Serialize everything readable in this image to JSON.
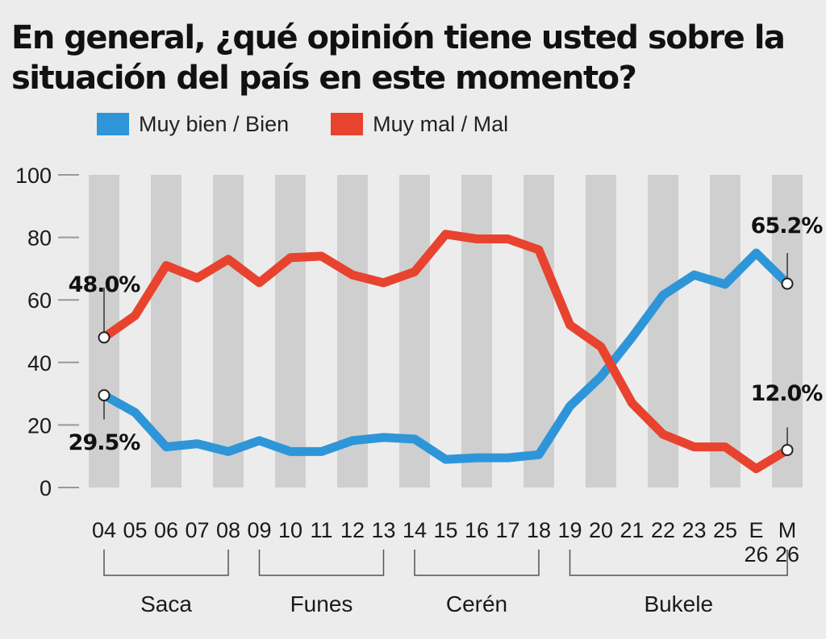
{
  "chart_data": {
    "type": "line",
    "title": "En general, ¿qué opinión tiene usted sobre la situación del país en este momento?",
    "ylim": [
      0,
      100
    ],
    "yticks": [
      "0",
      "20",
      "40",
      "60",
      "80",
      "100"
    ],
    "categories": [
      "04",
      "05",
      "06",
      "07",
      "08",
      "09",
      "10",
      "11",
      "12",
      "13",
      "14",
      "15",
      "16",
      "17",
      "18",
      "19",
      "20",
      "21",
      "22",
      "23",
      "25",
      "E 26",
      "M 26"
    ],
    "category_lines": [
      [
        "04"
      ],
      [
        "05"
      ],
      [
        "06"
      ],
      [
        "07"
      ],
      [
        "08"
      ],
      [
        "09"
      ],
      [
        "10"
      ],
      [
        "11"
      ],
      [
        "12"
      ],
      [
        "13"
      ],
      [
        "14"
      ],
      [
        "15"
      ],
      [
        "16"
      ],
      [
        "17"
      ],
      [
        "18"
      ],
      [
        "19"
      ],
      [
        "20"
      ],
      [
        "21"
      ],
      [
        "22"
      ],
      [
        "23"
      ],
      [
        "25"
      ],
      [
        "E",
        "26"
      ],
      [
        "M",
        "26"
      ]
    ],
    "series": [
      {
        "name": "Muy bien / Bien",
        "color": "#2e96d8",
        "values": [
          29.5,
          24,
          13,
          14,
          11.5,
          15,
          11.5,
          11.5,
          15,
          16,
          15.5,
          9,
          9.5,
          9.5,
          10.5,
          26,
          35.5,
          48,
          61.5,
          68,
          65,
          75,
          65.2
        ]
      },
      {
        "name": "Muy mal / Mal",
        "color": "#e8432e",
        "values": [
          48.0,
          55,
          71,
          67,
          73,
          65.5,
          73.5,
          74,
          68,
          65.5,
          69,
          81,
          79.5,
          79.5,
          76,
          52,
          45,
          27,
          17,
          13,
          13,
          6,
          12.0
        ]
      }
    ],
    "annotations": [
      {
        "label": "48.0%",
        "series": 1,
        "index": 0
      },
      {
        "label": "29.5%",
        "series": 0,
        "index": 0
      },
      {
        "label": "65.2%",
        "series": 0,
        "index": 22
      },
      {
        "label": "12.0%",
        "series": 1,
        "index": 22
      }
    ],
    "groups": [
      {
        "label": "Saca",
        "from": 0,
        "to": 4
      },
      {
        "label": "Funes",
        "from": 5,
        "to": 9
      },
      {
        "label": "Cerén",
        "from": 10,
        "to": 14
      },
      {
        "label": "Bukele",
        "from": 15,
        "to": 22
      }
    ],
    "grid": "alternating vertical bands",
    "legend": "top-left"
  }
}
